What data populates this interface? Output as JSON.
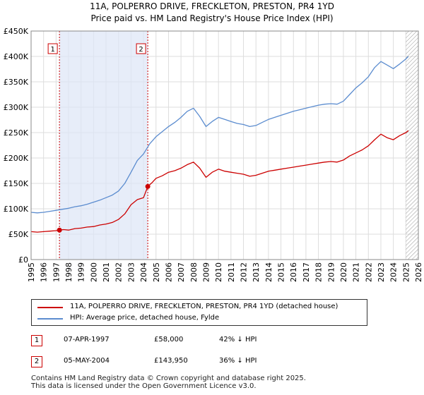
{
  "title_line1": "11A, POLPERRO DRIVE, FRECKLETON, PRESTON, PR4 1YD",
  "title_line2": "Price paid vs. HM Land Registry's House Price Index (HPI)",
  "chart_data": {
    "type": "line",
    "xlim": [
      1995.0,
      2026.0
    ],
    "ylim": [
      0,
      450000
    ],
    "yticks": [
      0,
      50000,
      100000,
      150000,
      200000,
      250000,
      300000,
      350000,
      400000,
      450000
    ],
    "ytick_labels": [
      "£0",
      "£50K",
      "£100K",
      "£150K",
      "£200K",
      "£250K",
      "£300K",
      "£350K",
      "£400K",
      "£450K"
    ],
    "xticks": [
      1995,
      1996,
      1997,
      1998,
      1999,
      2000,
      2001,
      2002,
      2003,
      2004,
      2005,
      2006,
      2007,
      2008,
      2009,
      2010,
      2011,
      2012,
      2013,
      2014,
      2015,
      2016,
      2017,
      2018,
      2019,
      2020,
      2021,
      2022,
      2023,
      2024,
      2025,
      2026
    ],
    "xtick_labels": [
      "1995",
      "1996",
      "1997",
      "1998",
      "1999",
      "2000",
      "2001",
      "2002",
      "2003",
      "2004",
      "2005",
      "2006",
      "2007",
      "2008",
      "2009",
      "2010",
      "2011",
      "2012",
      "2013",
      "2014",
      "2015",
      "2016",
      "2017",
      "2018",
      "2019",
      "2020",
      "2021",
      "2022",
      "2023",
      "2024",
      "2025",
      "2026"
    ],
    "grid": true,
    "shaded_ownership_span": [
      1997.27,
      2004.34
    ],
    "future_hatch_start": 2025.0,
    "series": [
      {
        "name": "11A, POLPERRO DRIVE, FRECKLETON, PRESTON, PR4 1YD (detached house)",
        "color": "#cc0000",
        "points": [
          [
            1995.0,
            55000
          ],
          [
            1995.5,
            54000
          ],
          [
            1996.0,
            55000
          ],
          [
            1996.5,
            56000
          ],
          [
            1997.0,
            57000
          ],
          [
            1997.27,
            58000
          ],
          [
            1997.6,
            59000
          ],
          [
            1998.0,
            58000
          ],
          [
            1998.5,
            61000
          ],
          [
            1999.0,
            62000
          ],
          [
            1999.5,
            64000
          ],
          [
            2000.0,
            65000
          ],
          [
            2000.5,
            68000
          ],
          [
            2001.0,
            70000
          ],
          [
            2001.5,
            73000
          ],
          [
            2002.0,
            79000
          ],
          [
            2002.5,
            90000
          ],
          [
            2003.0,
            108000
          ],
          [
            2003.5,
            118000
          ],
          [
            2004.0,
            122000
          ],
          [
            2004.34,
            143950
          ],
          [
            2004.7,
            152000
          ],
          [
            2005.0,
            160000
          ],
          [
            2005.5,
            165000
          ],
          [
            2006.0,
            172000
          ],
          [
            2006.5,
            175000
          ],
          [
            2007.0,
            180000
          ],
          [
            2007.5,
            187000
          ],
          [
            2008.0,
            192000
          ],
          [
            2008.5,
            180000
          ],
          [
            2009.0,
            162000
          ],
          [
            2009.5,
            172000
          ],
          [
            2010.0,
            178000
          ],
          [
            2010.5,
            174000
          ],
          [
            2011.0,
            172000
          ],
          [
            2011.5,
            170000
          ],
          [
            2012.0,
            168000
          ],
          [
            2012.5,
            164000
          ],
          [
            2013.0,
            166000
          ],
          [
            2013.5,
            170000
          ],
          [
            2014.0,
            174000
          ],
          [
            2014.5,
            176000
          ],
          [
            2015.0,
            178000
          ],
          [
            2015.5,
            180000
          ],
          [
            2016.0,
            182000
          ],
          [
            2016.5,
            184000
          ],
          [
            2017.0,
            186000
          ],
          [
            2017.5,
            188000
          ],
          [
            2018.0,
            190000
          ],
          [
            2018.5,
            192000
          ],
          [
            2019.0,
            193000
          ],
          [
            2019.5,
            192000
          ],
          [
            2020.0,
            196000
          ],
          [
            2020.5,
            204000
          ],
          [
            2021.0,
            210000
          ],
          [
            2021.5,
            216000
          ],
          [
            2022.0,
            224000
          ],
          [
            2022.5,
            236000
          ],
          [
            2023.0,
            247000
          ],
          [
            2023.5,
            240000
          ],
          [
            2024.0,
            236000
          ],
          [
            2024.5,
            244000
          ],
          [
            2025.0,
            250000
          ],
          [
            2025.2,
            254000
          ]
        ]
      },
      {
        "name": "HPI: Average price, detached house, Fylde",
        "color": "#5b8ccf",
        "points": [
          [
            1995.0,
            93000
          ],
          [
            1995.5,
            92000
          ],
          [
            1996.0,
            93000
          ],
          [
            1996.5,
            95000
          ],
          [
            1997.0,
            97000
          ],
          [
            1997.5,
            99000
          ],
          [
            1998.0,
            101000
          ],
          [
            1998.5,
            104000
          ],
          [
            1999.0,
            106000
          ],
          [
            1999.5,
            109000
          ],
          [
            2000.0,
            113000
          ],
          [
            2000.5,
            117000
          ],
          [
            2001.0,
            122000
          ],
          [
            2001.5,
            127000
          ],
          [
            2002.0,
            135000
          ],
          [
            2002.5,
            150000
          ],
          [
            2003.0,
            172000
          ],
          [
            2003.5,
            195000
          ],
          [
            2004.0,
            208000
          ],
          [
            2004.5,
            228000
          ],
          [
            2005.0,
            242000
          ],
          [
            2005.5,
            252000
          ],
          [
            2006.0,
            262000
          ],
          [
            2006.5,
            270000
          ],
          [
            2007.0,
            280000
          ],
          [
            2007.5,
            292000
          ],
          [
            2008.0,
            298000
          ],
          [
            2008.5,
            282000
          ],
          [
            2009.0,
            262000
          ],
          [
            2009.5,
            272000
          ],
          [
            2010.0,
            280000
          ],
          [
            2010.5,
            276000
          ],
          [
            2011.0,
            272000
          ],
          [
            2011.5,
            268000
          ],
          [
            2012.0,
            266000
          ],
          [
            2012.5,
            262000
          ],
          [
            2013.0,
            264000
          ],
          [
            2013.5,
            270000
          ],
          [
            2014.0,
            276000
          ],
          [
            2014.5,
            280000
          ],
          [
            2015.0,
            284000
          ],
          [
            2015.5,
            288000
          ],
          [
            2016.0,
            292000
          ],
          [
            2016.5,
            295000
          ],
          [
            2017.0,
            298000
          ],
          [
            2017.5,
            301000
          ],
          [
            2018.0,
            304000
          ],
          [
            2018.5,
            306000
          ],
          [
            2019.0,
            307000
          ],
          [
            2019.5,
            306000
          ],
          [
            2020.0,
            312000
          ],
          [
            2020.5,
            325000
          ],
          [
            2021.0,
            338000
          ],
          [
            2021.5,
            348000
          ],
          [
            2022.0,
            360000
          ],
          [
            2022.5,
            378000
          ],
          [
            2023.0,
            390000
          ],
          [
            2023.5,
            383000
          ],
          [
            2024.0,
            376000
          ],
          [
            2024.5,
            385000
          ],
          [
            2025.0,
            395000
          ],
          [
            2025.2,
            400000
          ]
        ]
      }
    ],
    "sales": [
      {
        "label": "1",
        "date": "07-APR-1997",
        "x": 1997.27,
        "price": 58000
      },
      {
        "label": "2",
        "date": "05-MAY-2004",
        "x": 2004.34,
        "price": 143950
      }
    ]
  },
  "legend": [
    {
      "label": "11A, POLPERRO DRIVE, FRECKLETON, PRESTON, PR4 1YD (detached house)",
      "color": "#cc0000"
    },
    {
      "label": "HPI: Average price, detached house, Fylde",
      "color": "#5b8ccf"
    }
  ],
  "sales_table": [
    {
      "label": "1",
      "date": "07-APR-1997",
      "price": "£58,000",
      "hpi": "42% ↓ HPI"
    },
    {
      "label": "2",
      "date": "05-MAY-2004",
      "price": "£143,950",
      "hpi": "36% ↓ HPI"
    }
  ],
  "footer": {
    "line1": "Contains HM Land Registry data © Crown copyright and database right 2025.",
    "line2": "This data is licensed under the Open Government Licence v3.0."
  }
}
